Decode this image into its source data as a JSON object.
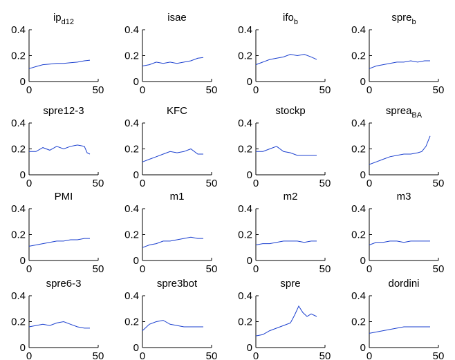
{
  "chart_data": [
    {
      "type": "line",
      "title_main": "ip",
      "title_sub": "d12",
      "xlim": [
        0,
        50
      ],
      "ylim": [
        0,
        0.4
      ],
      "xticks": [
        0,
        50
      ],
      "yticks": [
        0,
        0.2,
        0.4
      ],
      "series": [
        {
          "x": [
            0,
            5,
            10,
            15,
            20,
            25,
            30,
            35,
            40,
            44
          ],
          "y": [
            0.1,
            0.115,
            0.13,
            0.135,
            0.14,
            0.14,
            0.145,
            0.15,
            0.16,
            0.165
          ]
        }
      ]
    },
    {
      "type": "line",
      "title_main": "isae",
      "title_sub": "",
      "xlim": [
        0,
        50
      ],
      "ylim": [
        0,
        0.4
      ],
      "xticks": [
        0,
        50
      ],
      "yticks": [
        0,
        0.2,
        0.4
      ],
      "series": [
        {
          "x": [
            0,
            5,
            10,
            15,
            20,
            25,
            30,
            35,
            40,
            44
          ],
          "y": [
            0.12,
            0.13,
            0.15,
            0.14,
            0.15,
            0.14,
            0.15,
            0.16,
            0.18,
            0.185
          ]
        }
      ]
    },
    {
      "type": "line",
      "title_main": "ifo",
      "title_sub": "b",
      "xlim": [
        0,
        50
      ],
      "ylim": [
        0,
        0.4
      ],
      "xticks": [
        0,
        50
      ],
      "yticks": [
        0,
        0.2,
        0.4
      ],
      "series": [
        {
          "x": [
            0,
            5,
            10,
            15,
            20,
            25,
            30,
            35,
            40,
            44
          ],
          "y": [
            0.13,
            0.15,
            0.17,
            0.18,
            0.19,
            0.21,
            0.2,
            0.21,
            0.19,
            0.17
          ]
        }
      ]
    },
    {
      "type": "line",
      "title_main": "spre",
      "title_sub": "b",
      "xlim": [
        0,
        50
      ],
      "ylim": [
        0,
        0.4
      ],
      "xticks": [
        0,
        50
      ],
      "yticks": [
        0,
        0.2,
        0.4
      ],
      "series": [
        {
          "x": [
            0,
            5,
            10,
            15,
            20,
            25,
            30,
            35,
            40,
            44
          ],
          "y": [
            0.1,
            0.12,
            0.13,
            0.14,
            0.15,
            0.15,
            0.16,
            0.15,
            0.16,
            0.16
          ]
        }
      ]
    },
    {
      "type": "line",
      "title_main": "spre12-3",
      "title_sub": "",
      "xlim": [
        0,
        50
      ],
      "ylim": [
        0,
        0.4
      ],
      "xticks": [
        0,
        50
      ],
      "yticks": [
        0,
        0.2,
        0.4
      ],
      "series": [
        {
          "x": [
            0,
            5,
            10,
            15,
            20,
            25,
            30,
            35,
            40,
            42,
            44
          ],
          "y": [
            0.18,
            0.18,
            0.21,
            0.19,
            0.22,
            0.2,
            0.22,
            0.23,
            0.22,
            0.17,
            0.16
          ]
        }
      ]
    },
    {
      "type": "line",
      "title_main": "KFC",
      "title_sub": "",
      "xlim": [
        0,
        50
      ],
      "ylim": [
        0,
        0.4
      ],
      "xticks": [
        0,
        50
      ],
      "yticks": [
        0,
        0.2,
        0.4
      ],
      "series": [
        {
          "x": [
            0,
            5,
            10,
            15,
            20,
            25,
            30,
            35,
            40,
            44
          ],
          "y": [
            0.1,
            0.12,
            0.14,
            0.16,
            0.18,
            0.17,
            0.18,
            0.2,
            0.16,
            0.16
          ]
        }
      ]
    },
    {
      "type": "line",
      "title_main": "stockp",
      "title_sub": "",
      "xlim": [
        0,
        50
      ],
      "ylim": [
        0,
        0.4
      ],
      "xticks": [
        0,
        50
      ],
      "yticks": [
        0,
        0.2,
        0.4
      ],
      "series": [
        {
          "x": [
            0,
            5,
            10,
            15,
            20,
            25,
            30,
            35,
            40,
            44
          ],
          "y": [
            0.18,
            0.18,
            0.2,
            0.22,
            0.18,
            0.17,
            0.15,
            0.15,
            0.15,
            0.15
          ]
        }
      ]
    },
    {
      "type": "line",
      "title_main": "sprea",
      "title_sub": "BA",
      "xlim": [
        0,
        50
      ],
      "ylim": [
        0,
        0.4
      ],
      "xticks": [
        0,
        50
      ],
      "yticks": [
        0,
        0.2,
        0.4
      ],
      "series": [
        {
          "x": [
            0,
            5,
            10,
            15,
            20,
            25,
            30,
            35,
            38,
            41,
            44
          ],
          "y": [
            0.08,
            0.1,
            0.12,
            0.14,
            0.15,
            0.16,
            0.16,
            0.17,
            0.18,
            0.22,
            0.3
          ]
        }
      ]
    },
    {
      "type": "line",
      "title_main": "PMI",
      "title_sub": "",
      "xlim": [
        0,
        50
      ],
      "ylim": [
        0,
        0.4
      ],
      "xticks": [
        0,
        50
      ],
      "yticks": [
        0,
        0.2,
        0.4
      ],
      "series": [
        {
          "x": [
            0,
            5,
            10,
            15,
            20,
            25,
            30,
            35,
            40,
            44
          ],
          "y": [
            0.11,
            0.12,
            0.13,
            0.14,
            0.15,
            0.15,
            0.16,
            0.16,
            0.17,
            0.17
          ]
        }
      ]
    },
    {
      "type": "line",
      "title_main": "m1",
      "title_sub": "",
      "xlim": [
        0,
        50
      ],
      "ylim": [
        0,
        0.4
      ],
      "xticks": [
        0,
        50
      ],
      "yticks": [
        0,
        0.2,
        0.4
      ],
      "series": [
        {
          "x": [
            0,
            5,
            10,
            15,
            20,
            25,
            30,
            35,
            40,
            44
          ],
          "y": [
            0.1,
            0.12,
            0.13,
            0.15,
            0.15,
            0.16,
            0.17,
            0.18,
            0.17,
            0.17
          ]
        }
      ]
    },
    {
      "type": "line",
      "title_main": "m2",
      "title_sub": "",
      "xlim": [
        0,
        50
      ],
      "ylim": [
        0,
        0.4
      ],
      "xticks": [
        0,
        50
      ],
      "yticks": [
        0,
        0.2,
        0.4
      ],
      "series": [
        {
          "x": [
            0,
            5,
            10,
            15,
            20,
            25,
            30,
            35,
            40,
            44
          ],
          "y": [
            0.12,
            0.13,
            0.13,
            0.14,
            0.15,
            0.15,
            0.15,
            0.14,
            0.15,
            0.15
          ]
        }
      ]
    },
    {
      "type": "line",
      "title_main": "m3",
      "title_sub": "",
      "xlim": [
        0,
        50
      ],
      "ylim": [
        0,
        0.4
      ],
      "xticks": [
        0,
        50
      ],
      "yticks": [
        0,
        0.2,
        0.4
      ],
      "series": [
        {
          "x": [
            0,
            5,
            10,
            15,
            20,
            25,
            30,
            35,
            40,
            44
          ],
          "y": [
            0.12,
            0.14,
            0.14,
            0.15,
            0.15,
            0.14,
            0.15,
            0.15,
            0.15,
            0.15
          ]
        }
      ]
    },
    {
      "type": "line",
      "title_main": "spre6-3",
      "title_sub": "",
      "xlim": [
        0,
        50
      ],
      "ylim": [
        0,
        0.4
      ],
      "xticks": [
        0,
        50
      ],
      "yticks": [
        0,
        0.2,
        0.4
      ],
      "series": [
        {
          "x": [
            0,
            5,
            10,
            15,
            20,
            25,
            30,
            35,
            40,
            44
          ],
          "y": [
            0.16,
            0.17,
            0.18,
            0.17,
            0.19,
            0.2,
            0.18,
            0.16,
            0.15,
            0.15
          ]
        }
      ]
    },
    {
      "type": "line",
      "title_main": "spre3bot",
      "title_sub": "",
      "xlim": [
        0,
        50
      ],
      "ylim": [
        0,
        0.4
      ],
      "xticks": [
        0,
        50
      ],
      "yticks": [
        0,
        0.2,
        0.4
      ],
      "series": [
        {
          "x": [
            0,
            5,
            10,
            15,
            20,
            25,
            30,
            35,
            40,
            44
          ],
          "y": [
            0.13,
            0.18,
            0.2,
            0.21,
            0.18,
            0.17,
            0.16,
            0.16,
            0.16,
            0.16
          ]
        }
      ]
    },
    {
      "type": "line",
      "title_main": "spre",
      "title_sub": "",
      "xlim": [
        0,
        50
      ],
      "ylim": [
        0,
        0.4
      ],
      "xticks": [
        0,
        50
      ],
      "yticks": [
        0,
        0.2,
        0.4
      ],
      "series": [
        {
          "x": [
            0,
            5,
            10,
            15,
            20,
            25,
            28,
            31,
            34,
            37,
            40,
            44
          ],
          "y": [
            0.09,
            0.1,
            0.13,
            0.15,
            0.17,
            0.19,
            0.25,
            0.32,
            0.27,
            0.24,
            0.26,
            0.24
          ]
        }
      ]
    },
    {
      "type": "line",
      "title_main": "dordini",
      "title_sub": "",
      "xlim": [
        0,
        50
      ],
      "ylim": [
        0,
        0.4
      ],
      "xticks": [
        0,
        50
      ],
      "yticks": [
        0,
        0.2,
        0.4
      ],
      "series": [
        {
          "x": [
            0,
            5,
            10,
            15,
            20,
            25,
            30,
            35,
            40,
            44
          ],
          "y": [
            0.11,
            0.12,
            0.13,
            0.14,
            0.15,
            0.16,
            0.16,
            0.16,
            0.16,
            0.16
          ]
        }
      ]
    }
  ]
}
